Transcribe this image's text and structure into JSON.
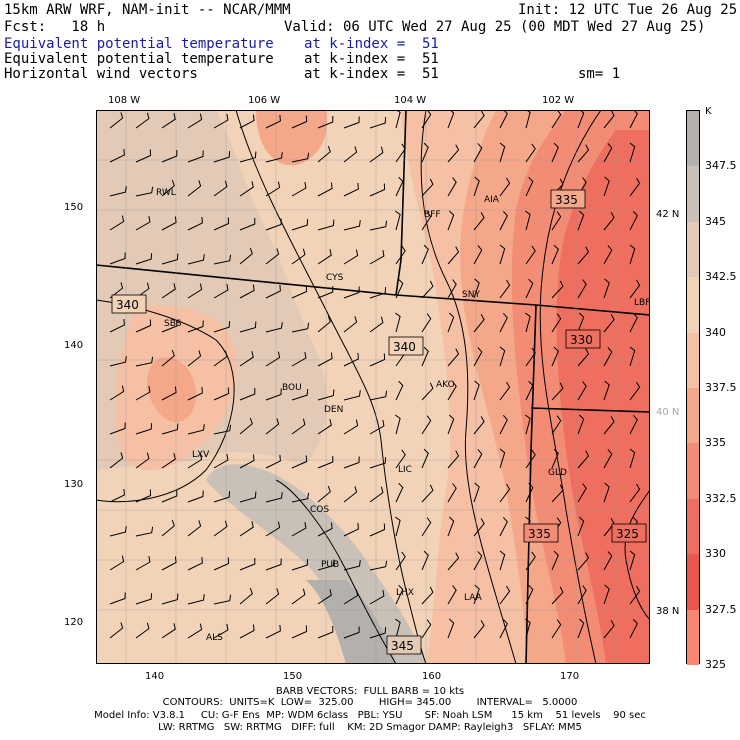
{
  "header": {
    "line1_left": "15km ARW WRF, NAM-init -- NCAR/MMM",
    "line1_right": "Init: 12 UTC Tue 26 Aug 25",
    "fcst": "Fcst:   18 h",
    "valid": "Valid: 06 UTC Wed 27 Aug 25 (00 MDT Wed 27 Aug 25)",
    "fields": [
      {
        "name": "Equivalent potential temperature",
        "level": "at k-index =  51"
      },
      {
        "name": "Equivalent potential temperature",
        "level": "at k-index =  51"
      },
      {
        "name": "Horizontal wind vectors",
        "level": "at k-index =  51"
      }
    ],
    "smoothing": "sm= 1"
  },
  "map": {
    "lon_labels": [
      "108 W",
      "106 W",
      "104 W",
      "102 W"
    ],
    "lat_labels": [
      "42 N",
      "40 N",
      "38 N"
    ],
    "x_ticks": [
      "140",
      "150",
      "160",
      "170"
    ],
    "y_ticks": [
      "150",
      "140",
      "130",
      "120"
    ],
    "stations": [
      "RWL",
      "BFF",
      "AIA",
      "CYS",
      "SNY",
      "LBF",
      "SBS",
      "BOU",
      "AKO",
      "DEN",
      "LXV",
      "LIC",
      "GLD",
      "COS",
      "PUB",
      "LHX",
      "LAA",
      "ALS"
    ],
    "contour_labels": [
      "335",
      "340",
      "340",
      "330",
      "335",
      "325",
      "345"
    ]
  },
  "colorbar": {
    "unit": "K",
    "labels": [
      "347.5",
      "345",
      "342.5",
      "340",
      "337.5",
      "335",
      "332.5",
      "330",
      "327.5",
      "325"
    ],
    "colors": [
      "#b3b0ad",
      "#c9c0b8",
      "#e2cab6",
      "#f2d3b8",
      "#f5c0a4",
      "#f4a789",
      "#f28c74",
      "#ee6f5f",
      "#e9574c",
      "#f7876e"
    ]
  },
  "footer": {
    "barb": "BARB VECTORS:  FULL BARB = 10 kts",
    "contours": "CONTOURS:  UNITS=K  LOW=  325.00        HIGH= 345.00        INTERVAL=   5.0000",
    "model1": "Model Info: V3.8.1     CU: G-F Ens  MP: WDM 6class   PBL: YSU       SF: Noah LSM      15 km    51 levels    90 sec",
    "model2": "LW: RRTMG   SW: RRTMG   DIFF: full    KM: 2D Smagor DAMP: Rayleigh3   SFLAY: MM5"
  }
}
